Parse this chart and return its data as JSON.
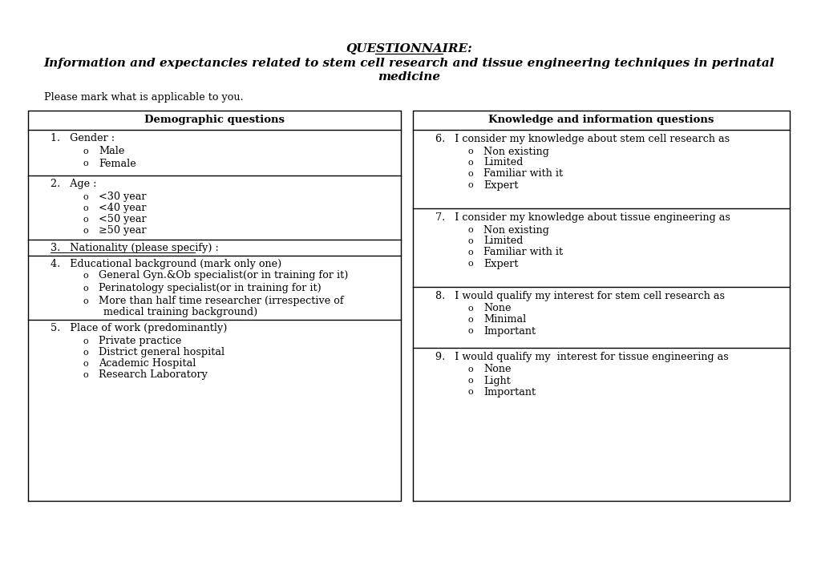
{
  "title_line1": "QUESTIONNAIRE:",
  "title_line2": "Information and expectancies related to stem cell research and tissue engineering techniques in perinatal",
  "title_line3": "medicine",
  "intro": "Please mark what is applicable to you.",
  "left_header": "Demographic questions",
  "right_header": "Knowledge and information questions",
  "left_sections": [
    {
      "label": "1.   Gender :",
      "options": [
        "Male",
        "Female"
      ]
    },
    {
      "label": "2.   Age :",
      "options": [
        "<30 year",
        "<40 year",
        "<50 year",
        "≥50 year"
      ]
    },
    {
      "label": "3.   Nationality (please specify) :",
      "options": []
    },
    {
      "label": "4.   Educational background (mark only one)",
      "options": [
        "General Gyn.&Ob specialist(or in training for it)",
        "Perinatology specialist(or in training for it)",
        "More than half time researcher (irrespective of",
        "medical training background)"
      ]
    },
    {
      "label": "5.   Place of work (predominantly)",
      "options": [
        "Private practice",
        "District general hospital",
        "Academic Hospital",
        "Research Laboratory"
      ]
    }
  ],
  "right_sections": [
    {
      "label": "6.   I consider my knowledge about stem cell research as",
      "options": [
        "Non existing",
        "Limited",
        "Familiar with it",
        "Expert"
      ]
    },
    {
      "label": "7.   I consider my knowledge about tissue engineering as",
      "options": [
        "Non existing",
        "Limited",
        "Familiar with it",
        "Expert"
      ]
    },
    {
      "label": "8.   I would qualify my interest for stem cell research as",
      "options": [
        "None",
        "Minimal",
        "Important"
      ]
    },
    {
      "label": "9.   I would qualify my  interest for tissue engineering as",
      "options": [
        "None",
        "Light",
        "Important"
      ]
    }
  ],
  "bg_color": "#ffffff",
  "text_color": "#000000",
  "border_color": "#000000"
}
